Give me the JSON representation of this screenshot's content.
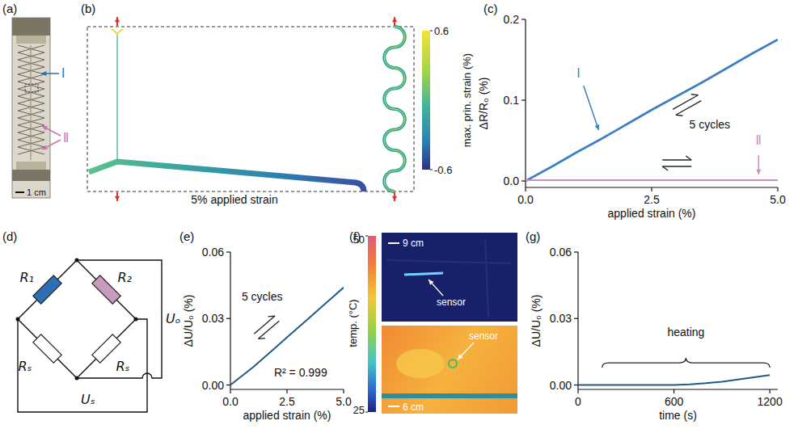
{
  "chart_data": [
    {
      "panel": "(c)",
      "type": "line",
      "x_label": "applied strain (%)",
      "y_label": "ΔR/R₀ (%)",
      "x": [
        0,
        0.5,
        1,
        1.5,
        2,
        2.5,
        3,
        3.5,
        4,
        4.5,
        5
      ],
      "series": [
        {
          "name": "Ⅰ",
          "color": "#3d7ec4",
          "values": [
            0,
            0.017,
            0.035,
            0.052,
            0.07,
            0.088,
            0.105,
            0.122,
            0.14,
            0.158,
            0.175
          ]
        },
        {
          "name": "Ⅱ",
          "color": "#c98fbf",
          "values": [
            0.001,
            0.001,
            0.001,
            0.001,
            0.001,
            0.001,
            0.001,
            0.001,
            0.001,
            0.001,
            0.001
          ]
        }
      ],
      "xlim": [
        0,
        5
      ],
      "xticks": [
        {
          "value": 0,
          "label": "0.0"
        },
        {
          "value": 2.5,
          "label": "2.5"
        },
        {
          "value": 5,
          "label": "5.0"
        }
      ],
      "ylim": [
        -0.008,
        0.2
      ],
      "yticks": [
        {
          "value": 0,
          "label": "0.0"
        },
        {
          "value": 0.1,
          "label": "0.1"
        },
        {
          "value": 0.2,
          "label": "0.2"
        }
      ],
      "annotations": [
        "5 cycles"
      ]
    },
    {
      "panel": "(e)",
      "type": "line",
      "x_label": "applied strain (%)",
      "y_label": "ΔU/U₀ (%)",
      "x": [
        0,
        0.5,
        1,
        1.5,
        2,
        2.5,
        3,
        3.5,
        4,
        4.5,
        5
      ],
      "series": [
        {
          "color": "#1f5a8a",
          "values": [
            0,
            0.004,
            0.008,
            0.0125,
            0.017,
            0.0215,
            0.026,
            0.0305,
            0.035,
            0.0395,
            0.044
          ]
        }
      ],
      "xlim": [
        0,
        5
      ],
      "xticks": [
        {
          "value": 0,
          "label": "0.0"
        },
        {
          "value": 2.5,
          "label": "2.5"
        },
        {
          "value": 5,
          "label": "5.0"
        }
      ],
      "ylim": [
        -0.002,
        0.06
      ],
      "yticks": [
        {
          "value": 0,
          "label": "0.00"
        },
        {
          "value": 0.03,
          "label": "0.03"
        },
        {
          "value": 0.06,
          "label": "0.06"
        }
      ],
      "annotations": [
        "5 cycles",
        "R² = 0.999"
      ]
    },
    {
      "panel": "(g)",
      "type": "line",
      "x_label": "time (s)",
      "y_label": "ΔU/U₀ (%)",
      "x": [
        0,
        100,
        200,
        300,
        400,
        500,
        600,
        700,
        800,
        900,
        1000,
        1100,
        1200
      ],
      "series": [
        {
          "color": "#1f5a8a",
          "values": [
            0,
            0,
            0,
            0,
            0,
            0,
            0,
            0.0003,
            0.0008,
            0.0015,
            0.0025,
            0.0035,
            0.0045
          ]
        }
      ],
      "xlim": [
        0,
        1250
      ],
      "xticks": [
        0,
        600,
        1200
      ],
      "ylim": [
        -0.002,
        0.06
      ],
      "yticks": [
        {
          "value": 0,
          "label": "0.00"
        },
        {
          "value": 0.03,
          "label": "0.03"
        },
        {
          "value": 0.06,
          "label": "0.06"
        }
      ],
      "annotations": [
        "heating"
      ]
    }
  ],
  "photo": {
    "panel": "(a)",
    "labels": [
      "Ⅰ",
      "Ⅱ"
    ],
    "scale_bar": "1 cm"
  },
  "simulation": {
    "panel": "(b)",
    "caption": "5% applied strain",
    "colorbar": {
      "title": "max. prin. strain (%)",
      "range": [
        -0.6,
        0.6
      ],
      "ticks": [
        -0.6,
        0.6
      ]
    }
  },
  "circuit": {
    "panel": "(d)",
    "resistors": [
      {
        "label": "R₁",
        "color": "#2f6db5"
      },
      {
        "label": "R₂",
        "color": "#c99ac0"
      },
      {
        "label": "Rₛ",
        "color": "#ffffff"
      },
      {
        "label": "Rₛ",
        "color": "#ffffff"
      }
    ],
    "output": "Uₒ",
    "supply": "Uₛ"
  },
  "thermal": {
    "panel": "(f)",
    "colorbar": {
      "title": "temp. (°C)",
      "range": [
        25,
        50
      ],
      "ticks": [
        25,
        50
      ]
    },
    "images": [
      {
        "scale_bar": "9 cm",
        "label": "sensor"
      },
      {
        "scale_bar": "6 cm",
        "label": "sensor"
      }
    ]
  }
}
